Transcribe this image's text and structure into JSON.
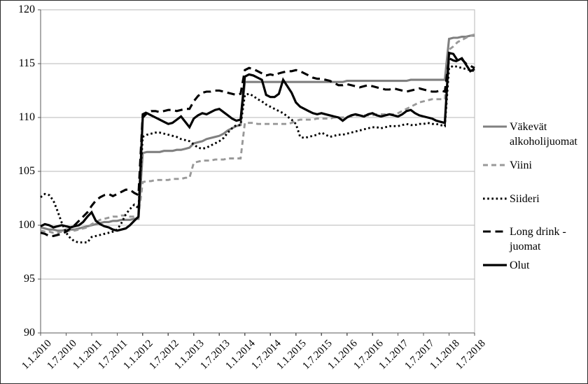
{
  "figure": {
    "background": "#ffffff",
    "outer_border_color": "#2b2b2b",
    "grid_color": "#b7b7b7",
    "axis_color": "#595959",
    "text_color": "#000000"
  },
  "chart_data": {
    "type": "line",
    "title": "",
    "xlabel": "",
    "ylabel": "",
    "grid": "horizontal",
    "legend_position": "right",
    "y_axis": {
      "min": 90,
      "max": 120,
      "tick_step": 5,
      "tick_labels": [
        "90",
        "95",
        "100",
        "105",
        "110",
        "115",
        "120"
      ]
    },
    "x_axis": {
      "tick_labels": [
        "1.1.2010",
        "1.7.2010",
        "1.1.2011",
        "1.7.2011",
        "1.1.2012",
        "1.7.2012",
        "1.1.2013",
        "1.7.2013",
        "1.1.2014",
        "1.7.2014",
        "1.1.2015",
        "1.7.2015",
        "1.1.2016",
        "1.7.2016",
        "1.1.2017",
        "1.7.2017",
        "1.1.2018",
        "1.7.2018"
      ],
      "points_per_tick": 6,
      "total_points": 103,
      "frequency": "monthly"
    },
    "series": [
      {
        "name": "vakevat-alkoholijuomat",
        "label": "Väkevät alkoholijuomat",
        "color": "#808080",
        "line_style": "solid",
        "dash": "",
        "stroke_width": 3.1,
        "values": [
          99.8,
          99.7,
          99.6,
          99.6,
          99.5,
          99.5,
          99.6,
          99.6,
          99.6,
          99.7,
          99.8,
          99.9,
          100.0,
          100.1,
          100.2,
          100.3,
          100.3,
          100.4,
          100.4,
          100.5,
          100.5,
          100.5,
          100.6,
          100.6,
          106.7,
          106.8,
          106.8,
          106.8,
          106.8,
          106.9,
          106.9,
          106.9,
          107.0,
          107.0,
          107.1,
          107.2,
          107.6,
          107.7,
          107.8,
          108.0,
          108.1,
          108.2,
          108.3,
          108.5,
          108.8,
          109.0,
          109.2,
          109.3,
          113.3,
          113.3,
          113.3,
          113.3,
          113.3,
          113.3,
          113.3,
          113.3,
          113.3,
          113.3,
          113.3,
          113.3,
          113.3,
          113.3,
          113.3,
          113.3,
          113.3,
          113.3,
          113.3,
          113.3,
          113.3,
          113.3,
          113.3,
          113.3,
          113.4,
          113.4,
          113.4,
          113.4,
          113.4,
          113.4,
          113.4,
          113.4,
          113.4,
          113.4,
          113.4,
          113.4,
          113.4,
          113.4,
          113.4,
          113.5,
          113.5,
          113.5,
          113.5,
          113.5,
          113.5,
          113.5,
          113.5,
          113.5,
          117.3,
          117.4,
          117.4,
          117.5,
          117.5,
          117.6,
          117.6
        ]
      },
      {
        "name": "viini",
        "label": "Viini",
        "color": "#999999",
        "line_style": "dashed",
        "dash": "7 5",
        "stroke_width": 2.9,
        "values": [
          99.5,
          99.4,
          99.4,
          99.3,
          99.3,
          99.4,
          99.4,
          99.5,
          99.5,
          99.6,
          99.7,
          99.8,
          100.1,
          100.3,
          100.5,
          100.6,
          100.7,
          100.8,
          100.8,
          100.9,
          100.9,
          100.8,
          100.8,
          100.8,
          104.0,
          104.1,
          104.1,
          104.2,
          104.2,
          104.2,
          104.2,
          104.3,
          104.3,
          104.3,
          104.4,
          104.4,
          105.8,
          105.9,
          106.0,
          106.0,
          106.0,
          106.1,
          106.1,
          106.1,
          106.2,
          106.2,
          106.2,
          106.2,
          109.5,
          109.5,
          109.5,
          109.4,
          109.4,
          109.4,
          109.4,
          109.4,
          109.4,
          109.4,
          109.4,
          109.5,
          109.7,
          109.8,
          109.8,
          109.8,
          109.8,
          109.9,
          109.9,
          109.9,
          109.9,
          110.0,
          110.0,
          110.0,
          110.1,
          110.1,
          110.2,
          110.2,
          110.2,
          110.2,
          110.2,
          110.3,
          110.3,
          110.3,
          110.3,
          110.3,
          110.4,
          110.6,
          110.8,
          111.0,
          111.2,
          111.4,
          111.5,
          111.6,
          111.7,
          111.7,
          111.7,
          111.7,
          116.3,
          116.6,
          117.0,
          117.2,
          117.4,
          117.6,
          117.7
        ]
      },
      {
        "name": "siideri",
        "label": "Siideri",
        "color": "#000000",
        "line_style": "dotted",
        "dash": "2.6 3.6",
        "stroke_width": 2.9,
        "values": [
          102.6,
          102.9,
          102.8,
          102.3,
          101.3,
          100.2,
          99.3,
          98.8,
          98.5,
          98.4,
          98.4,
          98.4,
          98.9,
          99.0,
          99.1,
          99.2,
          99.3,
          99.4,
          99.6,
          100.2,
          101.0,
          101.5,
          101.9,
          101.6,
          108.2,
          108.4,
          108.5,
          108.6,
          108.6,
          108.5,
          108.4,
          108.3,
          108.2,
          108.0,
          107.9,
          107.8,
          107.5,
          107.2,
          107.1,
          107.2,
          107.4,
          107.6,
          107.8,
          108.1,
          108.6,
          109.0,
          109.3,
          109.3,
          112.1,
          112.2,
          112.0,
          111.7,
          111.5,
          111.2,
          111.0,
          110.8,
          110.6,
          110.4,
          110.1,
          109.8,
          109.4,
          108.2,
          108.1,
          108.2,
          108.3,
          108.4,
          108.6,
          108.4,
          108.2,
          108.3,
          108.4,
          108.4,
          108.5,
          108.6,
          108.7,
          108.8,
          108.9,
          109.0,
          109.1,
          109.1,
          109.0,
          109.1,
          109.2,
          109.2,
          109.2,
          109.3,
          109.4,
          109.3,
          109.3,
          109.4,
          109.4,
          109.5,
          109.4,
          109.4,
          109.3,
          109.2,
          114.6,
          114.8,
          114.7,
          114.6,
          114.5,
          114.4,
          114.3
        ]
      },
      {
        "name": "long-drink-juomat",
        "label": "Long drink - juomat",
        "color": "#000000",
        "line_style": "long-dashed",
        "dash": "11 6.5",
        "stroke_width": 3.1,
        "values": [
          99.3,
          99.2,
          99.0,
          99.0,
          99.1,
          99.2,
          99.4,
          99.7,
          100.0,
          100.4,
          100.8,
          101.2,
          101.8,
          102.3,
          102.6,
          102.8,
          102.9,
          102.7,
          102.9,
          103.1,
          103.3,
          103.3,
          103.0,
          102.8,
          110.3,
          110.5,
          110.6,
          110.6,
          110.5,
          110.6,
          110.7,
          110.7,
          110.6,
          110.7,
          110.8,
          110.8,
          111.5,
          112.0,
          112.3,
          112.4,
          112.4,
          112.5,
          112.5,
          112.4,
          112.3,
          112.2,
          112.1,
          112.2,
          114.4,
          114.6,
          114.5,
          114.3,
          114.1,
          113.9,
          114.0,
          113.9,
          114.1,
          114.2,
          114.3,
          114.3,
          114.4,
          114.3,
          114.1,
          113.9,
          113.7,
          113.6,
          113.6,
          113.5,
          113.4,
          113.2,
          113.0,
          113.0,
          113.1,
          113.0,
          112.9,
          112.8,
          112.9,
          113.0,
          112.9,
          112.8,
          112.7,
          112.6,
          112.6,
          112.7,
          112.6,
          112.5,
          112.4,
          112.5,
          112.6,
          112.7,
          112.6,
          112.5,
          112.4,
          112.4,
          112.5,
          112.4,
          115.5,
          115.3,
          115.2,
          115.4,
          115.0,
          114.8,
          114.6
        ]
      },
      {
        "name": "olut",
        "label": "Olut",
        "color": "#000000",
        "line_style": "solid",
        "dash": "",
        "stroke_width": 3.2,
        "values": [
          99.9,
          100.1,
          100.0,
          99.8,
          99.9,
          100.0,
          99.9,
          99.8,
          99.9,
          100.0,
          100.3,
          100.8,
          101.2,
          100.4,
          100.1,
          99.9,
          99.8,
          99.6,
          99.5,
          99.6,
          99.7,
          100.0,
          100.4,
          100.8,
          110.0,
          110.4,
          110.2,
          110.0,
          109.8,
          109.6,
          109.4,
          109.5,
          109.8,
          110.1,
          109.6,
          109.1,
          109.9,
          110.2,
          110.4,
          110.3,
          110.5,
          110.7,
          110.8,
          110.5,
          110.2,
          109.9,
          109.7,
          109.8,
          113.8,
          114.0,
          113.9,
          113.7,
          113.5,
          112.1,
          111.9,
          111.9,
          112.2,
          113.5,
          112.9,
          112.3,
          111.4,
          111.0,
          110.8,
          110.6,
          110.4,
          110.3,
          110.4,
          110.3,
          110.2,
          110.1,
          110.0,
          109.7,
          110.0,
          110.2,
          110.3,
          110.2,
          110.1,
          110.3,
          110.4,
          110.2,
          110.1,
          110.2,
          110.3,
          110.2,
          110.1,
          110.3,
          110.6,
          110.7,
          110.4,
          110.2,
          110.1,
          110.0,
          109.9,
          109.7,
          109.6,
          109.5,
          116.0,
          115.9,
          115.3,
          115.5,
          114.9,
          114.3,
          114.5
        ]
      }
    ]
  }
}
